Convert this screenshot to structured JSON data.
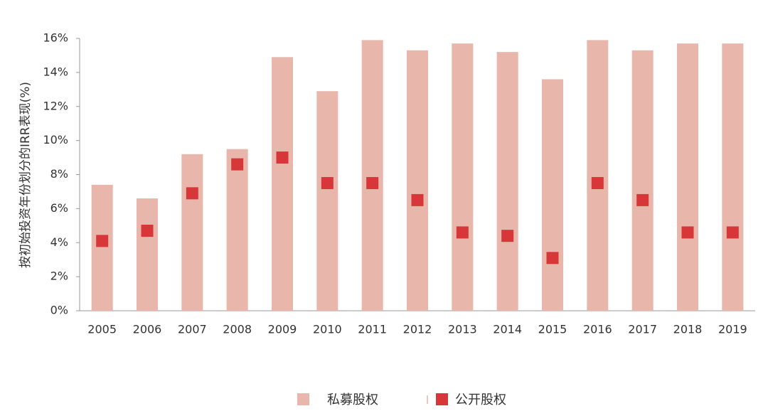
{
  "chart_data": {
    "type": "bar",
    "y_label": "按初始投资年份划分的IRR表现(%)",
    "categories": [
      "2005",
      "2006",
      "2007",
      "2008",
      "2009",
      "2010",
      "2011",
      "2012",
      "2013",
      "2014",
      "2015",
      "2016",
      "2017",
      "2018",
      "2019"
    ],
    "series": [
      {
        "name": "私募股权",
        "type": "bar",
        "color": "#e8b6ab",
        "values": [
          7.4,
          6.6,
          9.2,
          9.5,
          14.9,
          12.9,
          15.9,
          15.3,
          15.7,
          15.2,
          13.6,
          15.9,
          15.3,
          15.7,
          15.7
        ]
      },
      {
        "name": "公开股权",
        "type": "scatter",
        "color": "#d8373a",
        "values": [
          4.1,
          4.7,
          6.9,
          8.6,
          9.0,
          7.5,
          7.5,
          6.5,
          4.6,
          4.4,
          3.1,
          7.5,
          6.5,
          4.6,
          4.6
        ]
      }
    ],
    "ylim": [
      0,
      16
    ],
    "yticks": [
      {
        "value": 0,
        "label": "0%"
      },
      {
        "value": 2,
        "label": "2%"
      },
      {
        "value": 4,
        "label": "4%"
      },
      {
        "value": 6,
        "label": "6%"
      },
      {
        "value": 8,
        "label": "8%"
      },
      {
        "value": 10,
        "label": "10%"
      },
      {
        "value": 12,
        "label": "12%"
      },
      {
        "value": 14,
        "label": "14%"
      },
      {
        "value": 16,
        "label": "16%"
      }
    ],
    "grid": false,
    "legend": "bottom"
  }
}
